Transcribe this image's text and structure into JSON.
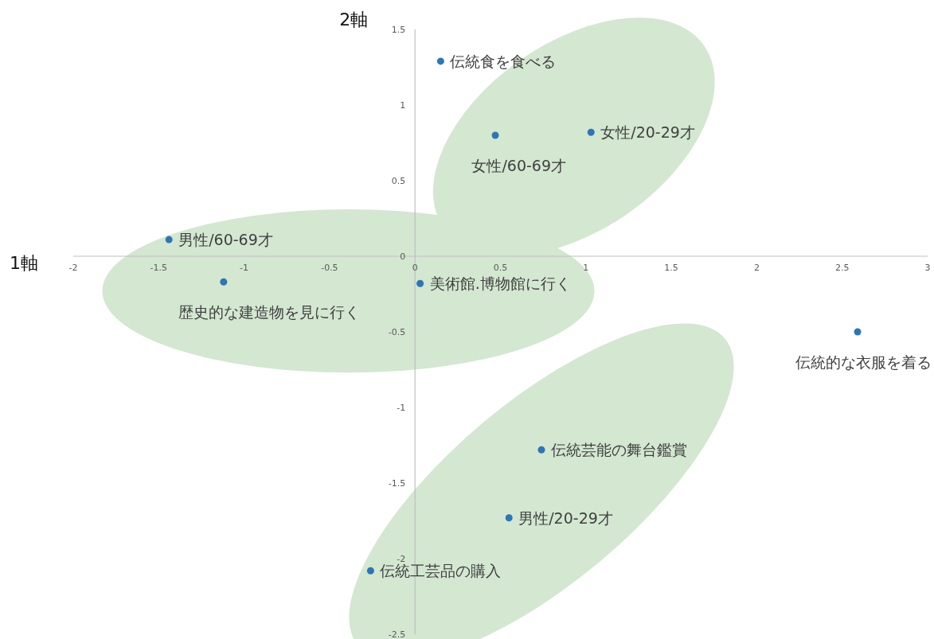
{
  "chart_data": {
    "type": "scatter",
    "xlabel": "1軸",
    "ylabel": "2軸",
    "xlim": [
      -2,
      3
    ],
    "ylim": [
      -2.5,
      1.5
    ],
    "xticks": [
      -2,
      -1.5,
      -1,
      -0.5,
      0,
      0.5,
      1,
      1.5,
      2,
      2.5,
      3
    ],
    "yticks": [
      -2.5,
      -2,
      -1.5,
      -1,
      -0.5,
      0,
      0.5,
      1,
      1.5
    ],
    "marker": "circle",
    "series": [
      {
        "color": "#2e75b6",
        "x": [
          0.15,
          0.47,
          1.03,
          -1.44,
          -1.12,
          0.03,
          2.59,
          0.74,
          0.55,
          -0.26
        ],
        "values": [
          1.29,
          0.8,
          0.82,
          0.11,
          -0.17,
          -0.18,
          -0.5,
          -1.28,
          -1.73,
          -2.08
        ]
      }
    ],
    "annotations": [
      {
        "text": "伝統食を食べる",
        "x": 0.15,
        "y": 1.29
      },
      {
        "text": "女性/60-69才",
        "x": 0.47,
        "y": 0.8
      },
      {
        "text": "女性/20-29才",
        "x": 1.03,
        "y": 0.82
      },
      {
        "text": "男性/60-69才",
        "x": -1.44,
        "y": 0.11
      },
      {
        "text": "歴史的な建造物を見に行く",
        "x": -1.12,
        "y": -0.17
      },
      {
        "text": "美術館.博物館に行く",
        "x": 0.03,
        "y": -0.18
      },
      {
        "text": "伝統的な衣服を着る",
        "x": 2.59,
        "y": -0.5
      },
      {
        "text": "伝統芸能の舞台鑑賞",
        "x": 0.74,
        "y": -1.28
      },
      {
        "text": "男性/20-29才",
        "x": 0.55,
        "y": -1.73
      },
      {
        "text": "伝統工芸品の購入",
        "x": -0.26,
        "y": -2.08
      }
    ]
  }
}
